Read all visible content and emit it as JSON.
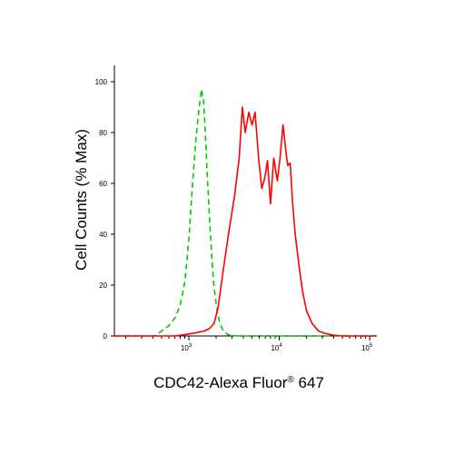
{
  "chart_data": {
    "type": "line",
    "title": "",
    "xlabel": {
      "prefix": "CDC42-Alexa Fluor",
      "mark": "®",
      "suffix": " 647"
    },
    "ylabel": "Cell Counts (% Max)",
    "x_scale": "log",
    "xlim": [
      150,
      120000
    ],
    "ylim": [
      0,
      100
    ],
    "y_ticks": [
      0,
      20,
      40,
      60,
      80,
      100
    ],
    "y_tick_labels": [
      "0",
      "20",
      "40",
      "60",
      "80",
      "100"
    ],
    "x_ticks": [
      {
        "value": 1000,
        "base": "10",
        "exp": "3"
      },
      {
        "value": 10000,
        "base": "10",
        "exp": "4"
      },
      {
        "value": 100000,
        "base": "10",
        "exp": "5"
      }
    ],
    "grid": false,
    "legend": "none",
    "series": [
      {
        "color": "#00cc00",
        "dash": "dashed",
        "x": [
          150,
          420,
          500,
          600,
          700,
          800,
          900,
          1000,
          1100,
          1200,
          1300,
          1380,
          1450,
          1520,
          1600,
          1700,
          1800,
          1900,
          2050,
          2200,
          2400,
          2700,
          3500,
          5000,
          10000,
          30000,
          120000
        ],
        "y": [
          0,
          0,
          2,
          4,
          7,
          12,
          21,
          38,
          60,
          78,
          90,
          97,
          93,
          80,
          63,
          45,
          30,
          19,
          10,
          5,
          2,
          0.5,
          0,
          0,
          0,
          0,
          0
        ]
      },
      {
        "color": "#ff0000",
        "dash": "solid",
        "x": [
          150,
          700,
          900,
          1100,
          1300,
          1500,
          1700,
          1900,
          2100,
          2400,
          2800,
          3200,
          3600,
          3900,
          4200,
          4600,
          5000,
          5400,
          5900,
          6400,
          6900,
          7400,
          8000,
          8700,
          9500,
          10200,
          11000,
          11700,
          12400,
          13200,
          14000,
          15000,
          16500,
          18000,
          20000,
          23000,
          27000,
          32000,
          40000,
          50000,
          120000
        ],
        "y": [
          0,
          0,
          0.5,
          1,
          1.5,
          2,
          3,
          5,
          11,
          26,
          42,
          55,
          70,
          90,
          80,
          88,
          83,
          88,
          70,
          58,
          62,
          69,
          52,
          70,
          61,
          70,
          83,
          74,
          67,
          68,
          53,
          40,
          28,
          18,
          10,
          5,
          2,
          1,
          0.3,
          0,
          0
        ]
      }
    ]
  }
}
